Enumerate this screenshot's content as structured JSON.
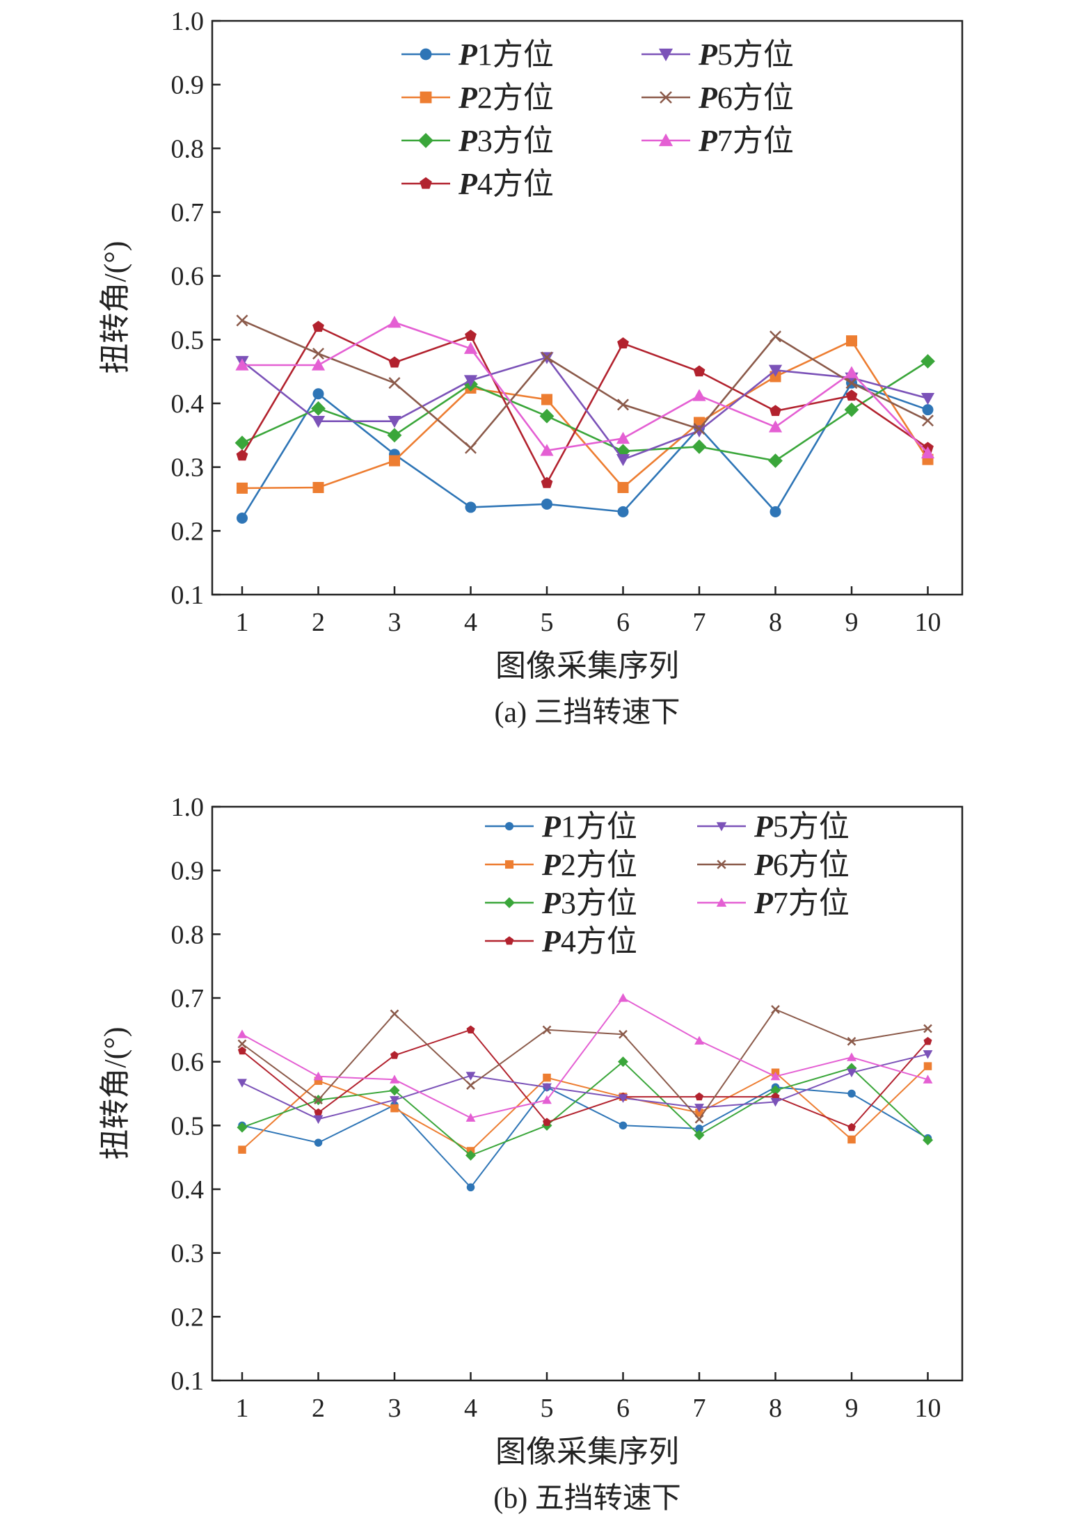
{
  "chart_data": [
    {
      "type": "line",
      "caption": "(a) 三挡转速下",
      "xlabel": "图像采集序列",
      "ylabel": "扭转角/(°)",
      "ylim": [
        0.1,
        1.0
      ],
      "yticks": [
        "0.1",
        "0.2",
        "0.3",
        "0.4",
        "0.5",
        "0.6",
        "0.7",
        "0.8",
        "0.9",
        "1.0"
      ],
      "x": [
        1,
        2,
        3,
        4,
        5,
        6,
        7,
        8,
        9,
        10
      ],
      "xticks": [
        "1",
        "2",
        "3",
        "4",
        "5",
        "6",
        "7",
        "8",
        "9",
        "10"
      ],
      "legend_placement": "top",
      "grid": false,
      "series": [
        {
          "name": "P1方位",
          "prefix": "P",
          "suffix": "1方位",
          "color": "#2e75b6",
          "marker": "circle",
          "values": [
            0.22,
            0.415,
            0.32,
            0.237,
            0.242,
            0.23,
            0.362,
            0.23,
            0.432,
            0.39
          ]
        },
        {
          "name": "P2方位",
          "prefix": "P",
          "suffix": "2方位",
          "color": "#ed7d31",
          "marker": "square",
          "values": [
            0.267,
            0.268,
            0.31,
            0.424,
            0.406,
            0.268,
            0.37,
            0.442,
            0.498,
            0.312
          ]
        },
        {
          "name": "P3方位",
          "prefix": "P",
          "suffix": "3方位",
          "color": "#3aa63a",
          "marker": "diamond",
          "values": [
            0.338,
            0.392,
            0.35,
            0.43,
            0.38,
            0.325,
            0.332,
            0.31,
            0.39,
            0.466
          ]
        },
        {
          "name": "P4方位",
          "prefix": "P",
          "suffix": "4方位",
          "color": "#b2222e",
          "marker": "pentagon",
          "values": [
            0.318,
            0.52,
            0.464,
            0.506,
            0.275,
            0.494,
            0.45,
            0.388,
            0.412,
            0.33
          ]
        },
        {
          "name": "P5方位",
          "prefix": "P",
          "suffix": "5方位",
          "color": "#7b52b8",
          "marker": "triangle-down",
          "values": [
            0.466,
            0.372,
            0.372,
            0.436,
            0.472,
            0.312,
            0.357,
            0.452,
            0.44,
            0.408
          ]
        },
        {
          "name": "P6方位",
          "prefix": "P",
          "suffix": "6方位",
          "color": "#8b5a4a",
          "marker": "x",
          "values": [
            0.53,
            0.478,
            0.432,
            0.33,
            0.472,
            0.398,
            0.36,
            0.505,
            0.432,
            0.373
          ]
        },
        {
          "name": "P7方位",
          "prefix": "P",
          "suffix": "7方位",
          "color": "#e45fd3",
          "marker": "triangle-up",
          "values": [
            0.46,
            0.46,
            0.527,
            0.486,
            0.326,
            0.345,
            0.412,
            0.363,
            0.448,
            0.322
          ]
        }
      ]
    },
    {
      "type": "line",
      "caption": "(b) 五挡转速下",
      "xlabel": "图像采集序列",
      "ylabel": "扭转角/(°)",
      "ylim": [
        0.1,
        1.0
      ],
      "yticks": [
        "0.1",
        "0.2",
        "0.3",
        "0.4",
        "0.5",
        "0.6",
        "0.7",
        "0.8",
        "0.9",
        "1.0"
      ],
      "x": [
        1,
        2,
        3,
        4,
        5,
        6,
        7,
        8,
        9,
        10
      ],
      "xticks": [
        "1",
        "2",
        "3",
        "4",
        "5",
        "6",
        "7",
        "8",
        "9",
        "10"
      ],
      "legend_placement": "top",
      "grid": false,
      "series": [
        {
          "name": "P1方位",
          "prefix": "P",
          "suffix": "1方位",
          "color": "#2e75b6",
          "marker": "circle",
          "values": [
            0.5,
            0.473,
            0.532,
            0.403,
            0.56,
            0.5,
            0.495,
            0.56,
            0.55,
            0.48
          ]
        },
        {
          "name": "P2方位",
          "prefix": "P",
          "suffix": "2方位",
          "color": "#ed7d31",
          "marker": "square",
          "values": [
            0.462,
            0.57,
            0.527,
            0.46,
            0.575,
            0.545,
            0.52,
            0.583,
            0.478,
            0.593
          ]
        },
        {
          "name": "P3方位",
          "prefix": "P",
          "suffix": "3方位",
          "color": "#3aa63a",
          "marker": "diamond",
          "values": [
            0.497,
            0.54,
            0.555,
            0.453,
            0.5,
            0.6,
            0.485,
            0.555,
            0.59,
            0.477
          ]
        },
        {
          "name": "P4方位",
          "prefix": "P",
          "suffix": "4方位",
          "color": "#b2222e",
          "marker": "pentagon",
          "values": [
            0.617,
            0.52,
            0.61,
            0.65,
            0.505,
            0.545,
            0.545,
            0.545,
            0.497,
            0.632
          ]
        },
        {
          "name": "P5方位",
          "prefix": "P",
          "suffix": "5方位",
          "color": "#7b52b8",
          "marker": "triangle-down",
          "values": [
            0.567,
            0.51,
            0.54,
            0.578,
            0.56,
            0.543,
            0.528,
            0.537,
            0.583,
            0.612
          ]
        },
        {
          "name": "P6方位",
          "prefix": "P",
          "suffix": "6方位",
          "color": "#8b5a4a",
          "marker": "x",
          "values": [
            0.628,
            0.54,
            0.675,
            0.563,
            0.65,
            0.643,
            0.51,
            0.682,
            0.632,
            0.652
          ]
        },
        {
          "name": "P7方位",
          "prefix": "P",
          "suffix": "7方位",
          "color": "#e45fd3",
          "marker": "triangle-up",
          "values": [
            0.643,
            0.577,
            0.572,
            0.512,
            0.54,
            0.7,
            0.633,
            0.577,
            0.607,
            0.572
          ]
        }
      ]
    }
  ]
}
